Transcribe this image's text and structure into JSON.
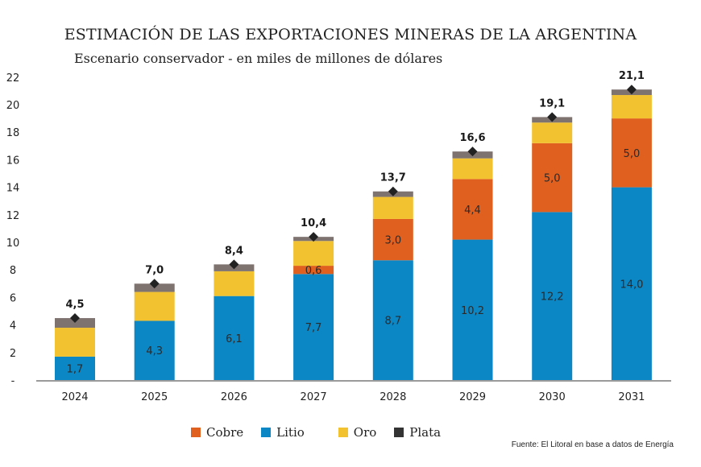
{
  "chart_data": {
    "type": "bar",
    "stacked": true,
    "title": "ESTIMACIÓN DE LAS EXPORTACIONES MINERAS DE LA ARGENTINA",
    "subtitle": "Escenario conservador - en miles de millones de dólares",
    "xlabel": "",
    "ylabel": "",
    "ylim": [
      0,
      22
    ],
    "yticks": [
      0,
      2,
      4,
      6,
      8,
      10,
      12,
      14,
      16,
      18,
      20,
      22
    ],
    "ytick_labels": [
      "-",
      "2",
      "4",
      "6",
      "8",
      "10",
      "12",
      "14",
      "16",
      "18",
      "20",
      "22"
    ],
    "grid": false,
    "legend_position": "bottom",
    "categories": [
      "2024",
      "2025",
      "2026",
      "2027",
      "2028",
      "2029",
      "2030",
      "2031"
    ],
    "series": [
      {
        "name": "Litio",
        "color": "#0b87c6",
        "values": [
          1.7,
          4.3,
          6.1,
          7.7,
          8.7,
          10.2,
          12.2,
          14.0
        ],
        "labels": [
          "1,7",
          "4,3",
          "6,1",
          "7,7",
          "8,7",
          "10,2",
          "12,2",
          "14,0"
        ]
      },
      {
        "name": "Cobre",
        "color": "#e0601f",
        "values": [
          0,
          0,
          0,
          0.6,
          3.0,
          4.4,
          5.0,
          5.0
        ],
        "labels": [
          "",
          "",
          "",
          "0,6",
          "3,0",
          "4,4",
          "5,0",
          "5,0"
        ]
      },
      {
        "name": "Oro",
        "color": "#f2c230",
        "values": [
          2.1,
          2.1,
          1.8,
          1.8,
          1.6,
          1.5,
          1.5,
          1.7
        ],
        "labels": [
          "",
          "",
          "",
          "",
          "",
          "",
          "",
          ""
        ]
      },
      {
        "name": "Plata",
        "color": "#7f7370",
        "values": [
          0.7,
          0.6,
          0.5,
          0.3,
          0.4,
          0.5,
          0.4,
          0.4
        ],
        "labels": [
          "",
          "",
          "",
          "",
          "",
          "",
          "",
          ""
        ]
      }
    ],
    "totals": [
      4.5,
      7.0,
      8.4,
      10.4,
      13.7,
      16.6,
      19.1,
      21.1
    ],
    "total_labels": [
      "4,5",
      "7,0",
      "8,4",
      "10,4",
      "13,7",
      "16,6",
      "19,1",
      "21,1"
    ],
    "legend": [
      {
        "name": "Cobre",
        "color": "#e0601f"
      },
      {
        "name": "Litio",
        "color": "#0b87c6"
      },
      {
        "name": "Oro",
        "color": "#f2c230"
      },
      {
        "name": "Plata",
        "color": "#333333"
      }
    ]
  },
  "source": "Fuente: El Litoral en base a datos de Energía"
}
